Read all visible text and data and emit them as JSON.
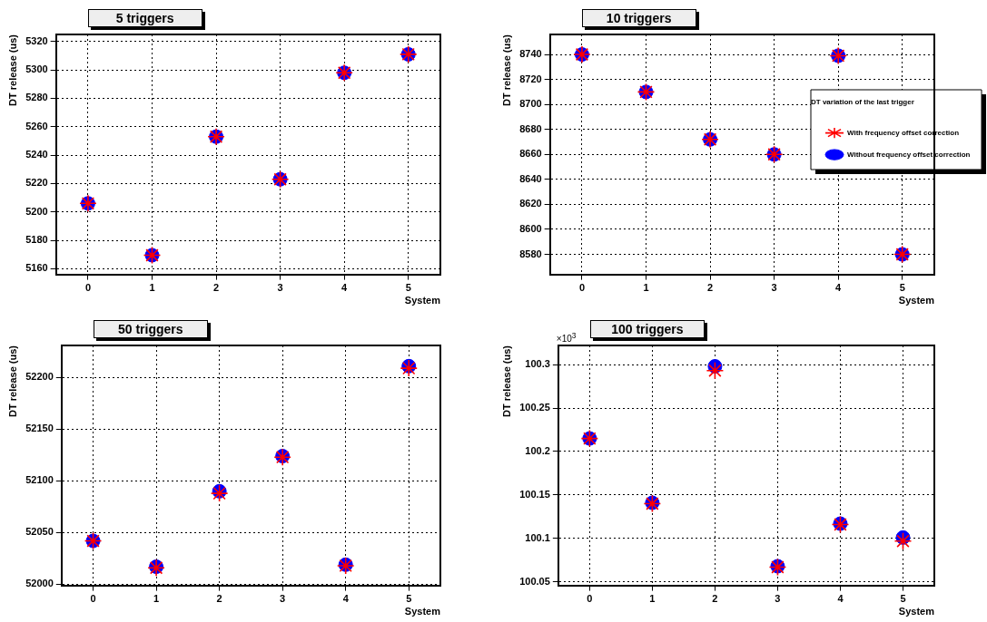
{
  "chart_data": [
    {
      "type": "scatter",
      "title": "5 triggers",
      "xlabel": "System",
      "ylabel": "DT release (us)",
      "x": [
        0,
        1,
        2,
        3,
        4,
        5
      ],
      "xlim": [
        -0.5,
        5.5
      ],
      "xticks": [
        0,
        1,
        2,
        3,
        4,
        5
      ],
      "ylim": [
        5156,
        5325
      ],
      "yticks": [
        5160,
        5180,
        5200,
        5220,
        5240,
        5260,
        5280,
        5300,
        5320
      ],
      "grid": true,
      "legend": false,
      "series": [
        {
          "color": "#ff0000",
          "marker": "cross",
          "values": [
            5206,
            5169.5,
            5253,
            5223,
            5298,
            5311
          ]
        },
        {
          "color": "#0000ff",
          "marker": "circle",
          "values": [
            5206,
            5169.5,
            5253,
            5223,
            5298,
            5311
          ]
        }
      ]
    },
    {
      "type": "scatter",
      "title": "10 triggers",
      "xlabel": "System",
      "ylabel": "DT release (us)",
      "legend_title": "DT variation of the last trigger",
      "x": [
        0,
        1,
        2,
        3,
        4,
        5
      ],
      "xlim": [
        -0.5,
        5.5
      ],
      "xticks": [
        0,
        1,
        2,
        3,
        4,
        5
      ],
      "ylim": [
        8564,
        8756
      ],
      "yticks": [
        8580,
        8600,
        8620,
        8640,
        8660,
        8680,
        8700,
        8720,
        8740
      ],
      "grid": true,
      "legend": "top right",
      "series": [
        {
          "name": "With frequency offset correction",
          "color": "#ff0000",
          "marker": "cross",
          "values": [
            8740,
            8710,
            8672,
            8660,
            8739,
            8580
          ]
        },
        {
          "name": "Without frequency offset correction",
          "color": "#0000ff",
          "marker": "circle",
          "values": [
            8740,
            8710,
            8672,
            8660,
            8739,
            8580
          ]
        }
      ]
    },
    {
      "type": "scatter",
      "title": "50 triggers",
      "xlabel": "System",
      "ylabel": "DT release (us)",
      "x": [
        0,
        1,
        2,
        3,
        4,
        5
      ],
      "xlim": [
        -0.5,
        5.5
      ],
      "xticks": [
        0,
        1,
        2,
        3,
        4,
        5
      ],
      "ylim": [
        51999,
        52231
      ],
      "yticks": [
        52000,
        52050,
        52100,
        52150,
        52200
      ],
      "grid": true,
      "legend": false,
      "series": [
        {
          "color": "#ff0000",
          "marker": "cross",
          "values": [
            52042,
            52016,
            52088,
            52123,
            52018,
            52209
          ]
        },
        {
          "color": "#0000ff",
          "marker": "circle",
          "values": [
            52042,
            52017,
            52090,
            52124,
            52019,
            52211
          ]
        }
      ]
    },
    {
      "type": "scatter",
      "title": "100 triggers",
      "xlabel": "System",
      "ylabel": "DT release (us)",
      "annotations": [
        "×10$^{3}$"
      ],
      "x": [
        0,
        1,
        2,
        3,
        4,
        5
      ],
      "xlim": [
        -0.5,
        5.5
      ],
      "xticks": [
        0,
        1,
        2,
        3,
        4,
        5
      ],
      "ylim": [
        100.046,
        100.322
      ],
      "yticks": [
        100.05,
        100.1,
        100.15,
        100.2,
        100.25,
        100.3
      ],
      "grid": true,
      "legend": false,
      "series": [
        {
          "color": "#ff0000",
          "marker": "cross",
          "values": [
            100.215,
            100.14,
            100.293,
            100.067,
            100.116,
            100.097
          ]
        },
        {
          "color": "#0000ff",
          "marker": "circle",
          "values": [
            100.215,
            100.141,
            100.298,
            100.068,
            100.117,
            100.101
          ]
        }
      ]
    }
  ]
}
